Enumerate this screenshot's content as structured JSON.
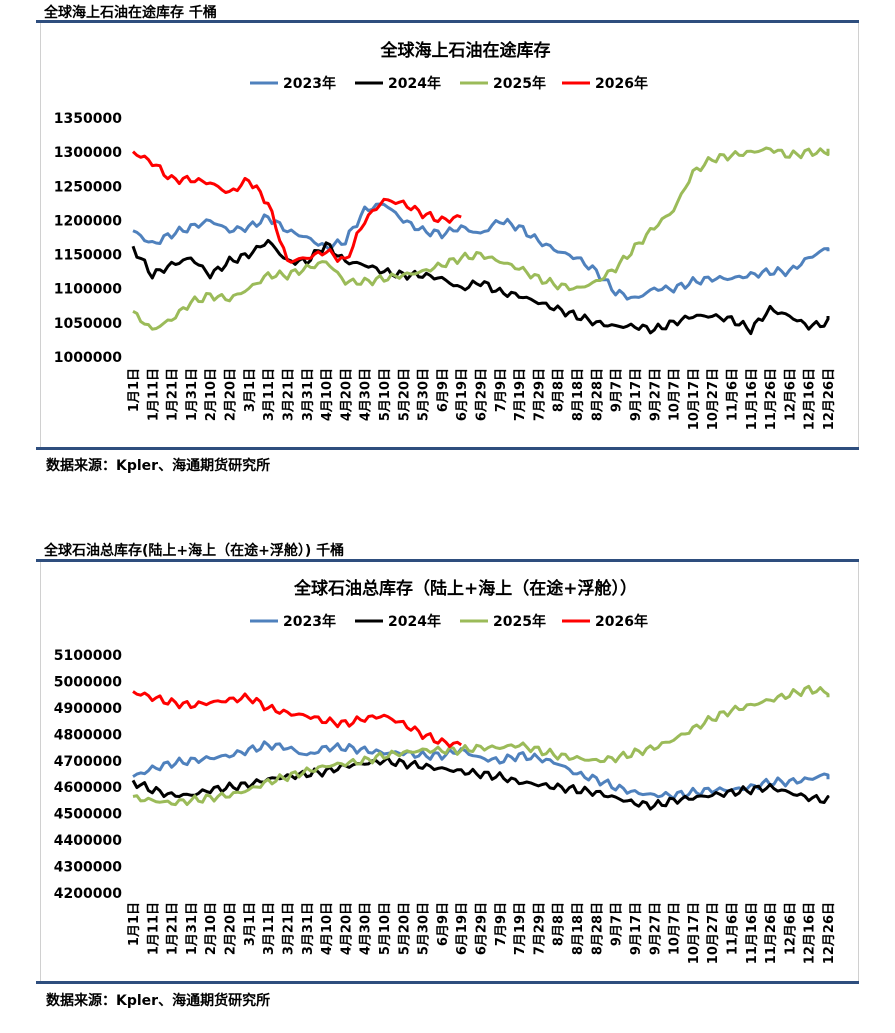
{
  "top_section": {
    "title": "全球海上石油在途库存 千桶",
    "source": "数据来源：Kpler、海通期货研究所"
  },
  "bottom_section": {
    "title": "全球石油总库存(陆上+海上（在途+浮舱）) 千桶",
    "source": "数据来源：Kpler、海通期货研究所"
  },
  "colors": {
    "2023年": "#4f81bd",
    "2024年": "#000000",
    "2025年": "#9bbb59",
    "2026年": "#ff0000",
    "rule": "#2e4e7e"
  },
  "x_tick_labels": [
    "1月1日",
    "1月11日",
    "1月21日",
    "1月31日",
    "2月10日",
    "2月20日",
    "3月1日",
    "3月11日",
    "3月21日",
    "3月31日",
    "4月10日",
    "4月20日",
    "4月30日",
    "5月10日",
    "5月20日",
    "5月30日",
    "6月9日",
    "6月19日",
    "6月29日",
    "7月9日",
    "7月19日",
    "7月29日",
    "8月8日",
    "8月18日",
    "8月28日",
    "9月7日",
    "9月17日",
    "9月27日",
    "10月7日",
    "10月17日",
    "10月27日",
    "11月6日",
    "11月16日",
    "11月26日",
    "12月6日",
    "12月16日",
    "12月26日"
  ],
  "chart_data": [
    {
      "type": "line",
      "title": "全球海上石油在途库存",
      "ylim": [
        1000000,
        1350000
      ],
      "y_ticks": [
        "1000000",
        "1050000",
        "1100000",
        "1150000",
        "1200000",
        "1250000",
        "1300000",
        "1350000"
      ],
      "x_day_step": 10,
      "legend": "top",
      "grid": false,
      "series": [
        {
          "name": "2023年",
          "values": [
            1185000,
            1165000,
            1180000,
            1190000,
            1200000,
            1185000,
            1190000,
            1205000,
            1185000,
            1175000,
            1160000,
            1170000,
            1215000,
            1225000,
            1200000,
            1185000,
            1180000,
            1190000,
            1180000,
            1200000,
            1190000,
            1170000,
            1155000,
            1145000,
            1125000,
            1095000,
            1085000,
            1100000,
            1100000,
            1110000,
            1115000,
            1115000,
            1120000,
            1125000,
            1125000,
            1145000,
            1160000,
            1155000
          ]
        },
        {
          "name": "2024年",
          "values": [
            1160000,
            1120000,
            1135000,
            1145000,
            1120000,
            1140000,
            1150000,
            1170000,
            1140000,
            1140000,
            1165000,
            1140000,
            1135000,
            1125000,
            1120000,
            1120000,
            1115000,
            1100000,
            1110000,
            1095000,
            1090000,
            1080000,
            1070000,
            1060000,
            1050000,
            1045000,
            1045000,
            1040000,
            1050000,
            1060000,
            1060000,
            1055000,
            1040000,
            1070000,
            1060000,
            1045000,
            1050000,
            1060000
          ]
        },
        {
          "name": "2025年",
          "values": [
            1065000,
            1040000,
            1055000,
            1080000,
            1090000,
            1085000,
            1100000,
            1120000,
            1120000,
            1130000,
            1140000,
            1110000,
            1110000,
            1115000,
            1120000,
            1125000,
            1135000,
            1145000,
            1150000,
            1140000,
            1130000,
            1115000,
            1105000,
            1100000,
            1110000,
            1130000,
            1160000,
            1190000,
            1215000,
            1270000,
            1290000,
            1295000,
            1300000,
            1305000,
            1295000,
            1300000,
            1300000,
            1305000
          ]
        },
        {
          "name": "2026年",
          "values": [
            1300000,
            1285000,
            1260000,
            1260000,
            1255000,
            1240000,
            1260000,
            1225000,
            1140000,
            1145000,
            1155000,
            1140000,
            1200000,
            1230000,
            1225000,
            1210000,
            1200000,
            1205000
          ]
        }
      ]
    },
    {
      "type": "line",
      "title": "全球石油总库存（陆上+海上（在途+浮舱））",
      "ylim": [
        4200000,
        5100000
      ],
      "y_ticks": [
        "4200000",
        "4300000",
        "4400000",
        "4500000",
        "4600000",
        "4700000",
        "4800000",
        "4900000",
        "5000000",
        "5100000"
      ],
      "x_day_step": 10,
      "legend": "top",
      "grid": false,
      "series": [
        {
          "name": "2023年",
          "values": [
            4640000,
            4670000,
            4690000,
            4700000,
            4710000,
            4720000,
            4740000,
            4760000,
            4750000,
            4720000,
            4750000,
            4750000,
            4740000,
            4730000,
            4730000,
            4720000,
            4720000,
            4740000,
            4710000,
            4700000,
            4720000,
            4710000,
            4690000,
            4650000,
            4630000,
            4600000,
            4580000,
            4570000,
            4570000,
            4580000,
            4590000,
            4590000,
            4600000,
            4620000,
            4620000,
            4630000,
            4650000,
            4630000
          ]
        },
        {
          "name": "2024年",
          "values": [
            4620000,
            4590000,
            4570000,
            4570000,
            4590000,
            4600000,
            4610000,
            4630000,
            4640000,
            4650000,
            4660000,
            4680000,
            4690000,
            4700000,
            4690000,
            4680000,
            4670000,
            4660000,
            4650000,
            4640000,
            4620000,
            4610000,
            4600000,
            4590000,
            4580000,
            4560000,
            4540000,
            4530000,
            4550000,
            4560000,
            4570000,
            4580000,
            4590000,
            4600000,
            4580000,
            4560000,
            4550000,
            4560000
          ]
        },
        {
          "name": "2025年",
          "values": [
            4560000,
            4550000,
            4540000,
            4550000,
            4560000,
            4570000,
            4590000,
            4620000,
            4640000,
            4660000,
            4680000,
            4690000,
            4700000,
            4720000,
            4730000,
            4740000,
            4740000,
            4740000,
            4750000,
            4750000,
            4760000,
            4740000,
            4720000,
            4710000,
            4700000,
            4710000,
            4730000,
            4750000,
            4780000,
            4820000,
            4860000,
            4890000,
            4910000,
            4930000,
            4950000,
            4970000,
            4960000,
            4940000
          ]
        },
        {
          "name": "2026年",
          "values": [
            4960000,
            4940000,
            4920000,
            4910000,
            4920000,
            4930000,
            4940000,
            4900000,
            4880000,
            4870000,
            4850000,
            4840000,
            4860000,
            4870000,
            4840000,
            4800000,
            4770000,
            4760000
          ]
        }
      ]
    }
  ]
}
